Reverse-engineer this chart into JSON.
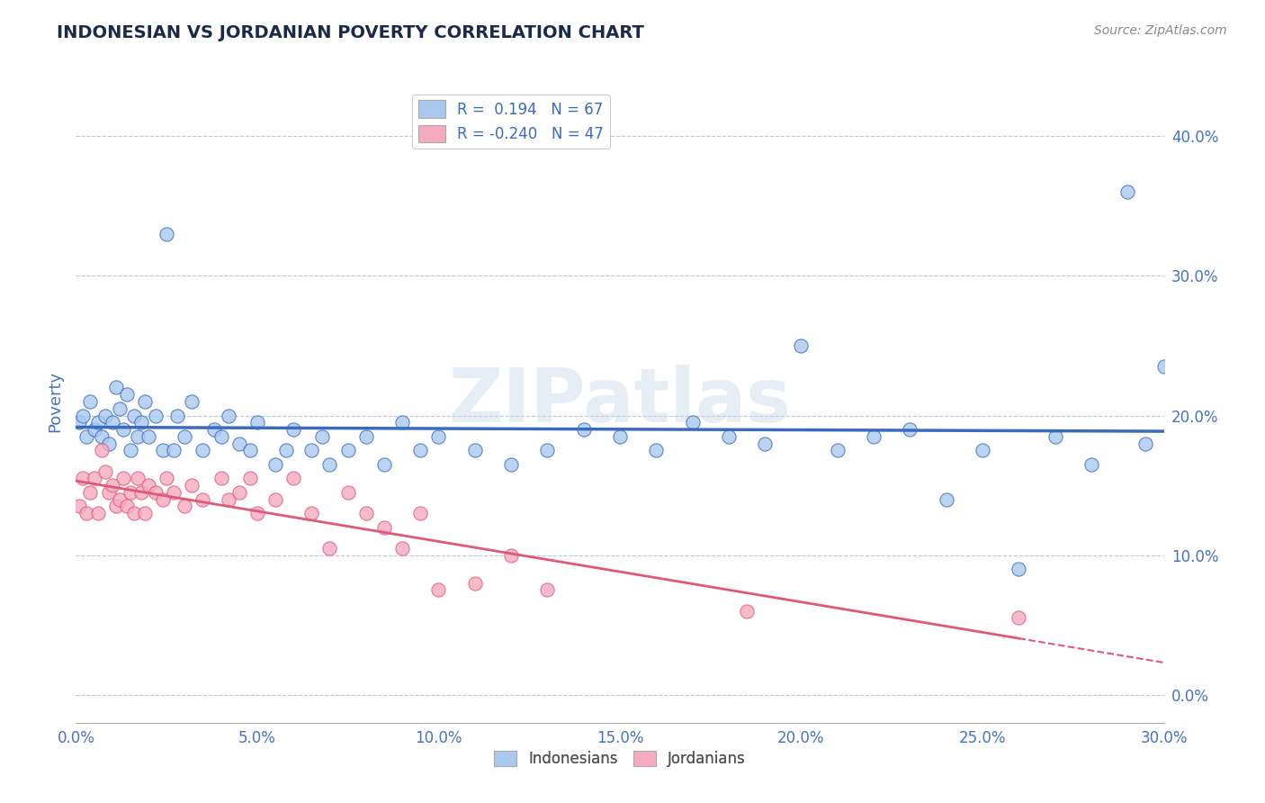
{
  "title": "INDONESIAN VS JORDANIAN POVERTY CORRELATION CHART",
  "source": "Source: ZipAtlas.com",
  "xlim": [
    0.0,
    0.3
  ],
  "ylim": [
    -0.02,
    0.44
  ],
  "blue_color": "#a8c8ee",
  "pink_color": "#f4aabf",
  "blue_line_color": "#3a6bbf",
  "pink_line_color": "#e05878",
  "watermark": "ZIPatlas",
  "title_color": "#1a2a4a",
  "axis_label_color": "#4472c4",
  "tick_color": "#4472c4",
  "grid_color": "#b8c8d8",
  "legend_label_blue": "R =  0.194   N = 67",
  "legend_label_pink": "R = -0.240   N = 47",
  "legend_xlabel": [
    "Indonesians",
    "Jordanians"
  ],
  "indonesians_x": [
    0.001,
    0.002,
    0.003,
    0.004,
    0.005,
    0.006,
    0.007,
    0.008,
    0.009,
    0.01,
    0.011,
    0.012,
    0.013,
    0.014,
    0.015,
    0.016,
    0.017,
    0.018,
    0.019,
    0.02,
    0.022,
    0.024,
    0.025,
    0.027,
    0.028,
    0.03,
    0.032,
    0.035,
    0.038,
    0.04,
    0.042,
    0.045,
    0.048,
    0.05,
    0.055,
    0.058,
    0.06,
    0.065,
    0.068,
    0.07,
    0.075,
    0.08,
    0.085,
    0.09,
    0.095,
    0.1,
    0.11,
    0.12,
    0.13,
    0.14,
    0.15,
    0.16,
    0.17,
    0.18,
    0.19,
    0.2,
    0.21,
    0.22,
    0.23,
    0.24,
    0.25,
    0.26,
    0.27,
    0.28,
    0.29,
    0.295,
    0.3
  ],
  "indonesians_y": [
    0.195,
    0.2,
    0.185,
    0.21,
    0.19,
    0.195,
    0.185,
    0.2,
    0.18,
    0.195,
    0.22,
    0.205,
    0.19,
    0.215,
    0.175,
    0.2,
    0.185,
    0.195,
    0.21,
    0.185,
    0.2,
    0.175,
    0.33,
    0.175,
    0.2,
    0.185,
    0.21,
    0.175,
    0.19,
    0.185,
    0.2,
    0.18,
    0.175,
    0.195,
    0.165,
    0.175,
    0.19,
    0.175,
    0.185,
    0.165,
    0.175,
    0.185,
    0.165,
    0.195,
    0.175,
    0.185,
    0.175,
    0.165,
    0.175,
    0.19,
    0.185,
    0.175,
    0.195,
    0.185,
    0.18,
    0.25,
    0.175,
    0.185,
    0.19,
    0.14,
    0.175,
    0.09,
    0.185,
    0.165,
    0.36,
    0.18,
    0.235
  ],
  "jordanians_x": [
    0.001,
    0.002,
    0.003,
    0.004,
    0.005,
    0.006,
    0.007,
    0.008,
    0.009,
    0.01,
    0.011,
    0.012,
    0.013,
    0.014,
    0.015,
    0.016,
    0.017,
    0.018,
    0.019,
    0.02,
    0.022,
    0.024,
    0.025,
    0.027,
    0.03,
    0.032,
    0.035,
    0.04,
    0.042,
    0.045,
    0.048,
    0.05,
    0.055,
    0.06,
    0.065,
    0.07,
    0.075,
    0.08,
    0.085,
    0.09,
    0.095,
    0.1,
    0.11,
    0.12,
    0.13,
    0.185,
    0.26
  ],
  "jordanians_y": [
    0.135,
    0.155,
    0.13,
    0.145,
    0.155,
    0.13,
    0.175,
    0.16,
    0.145,
    0.15,
    0.135,
    0.14,
    0.155,
    0.135,
    0.145,
    0.13,
    0.155,
    0.145,
    0.13,
    0.15,
    0.145,
    0.14,
    0.155,
    0.145,
    0.135,
    0.15,
    0.14,
    0.155,
    0.14,
    0.145,
    0.155,
    0.13,
    0.14,
    0.155,
    0.13,
    0.105,
    0.145,
    0.13,
    0.12,
    0.105,
    0.13,
    0.075,
    0.08,
    0.1,
    0.075,
    0.06,
    0.055
  ]
}
